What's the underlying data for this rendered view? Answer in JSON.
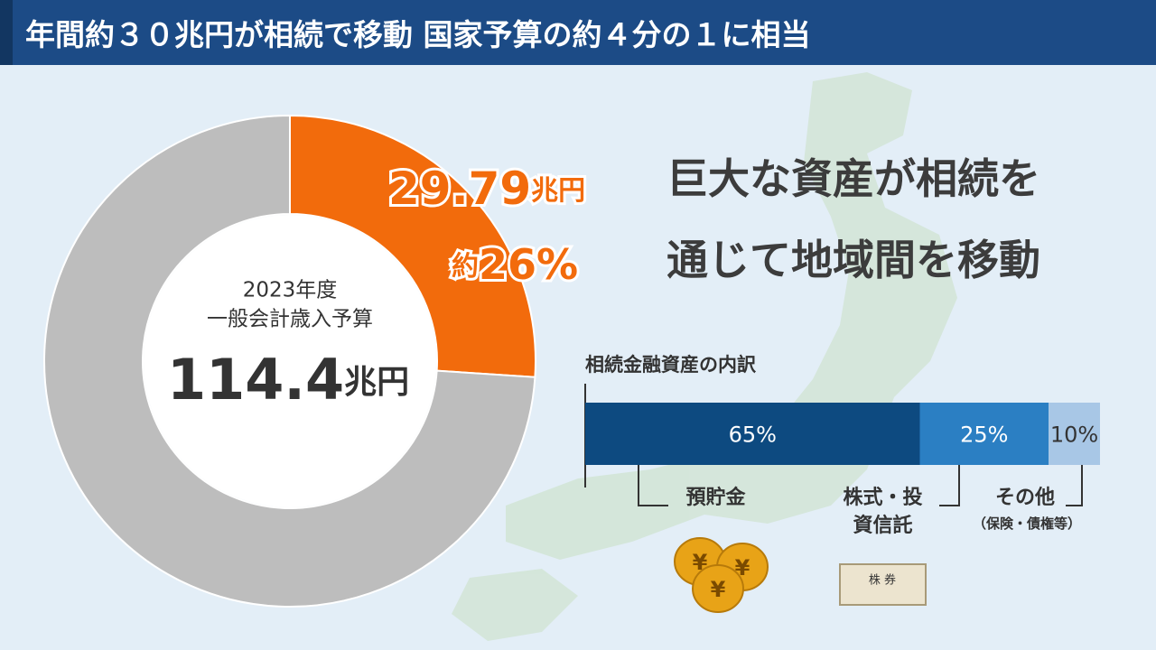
{
  "header": {
    "title": "年間約３０兆円が相続で移動 国家予算の約４分の１に相当"
  },
  "message": {
    "lines": [
      "巨大な資産が相続を",
      "通じて地域間を移動"
    ]
  },
  "icons": {
    "coin_symbol": "¥",
    "certificate_label": "株 券"
  },
  "chart_data": [
    {
      "type": "pie",
      "center_label": [
        "2023年度",
        "一般会計歳入予算"
      ],
      "total": 114.4,
      "unit": "兆円",
      "values": [
        29.79
      ],
      "color": "#f26b0c",
      "rest_color": "#bdbdbd",
      "share_prefix": "約",
      "share": 26,
      "share_label": "26%"
    },
    {
      "type": "bar",
      "title": "相続金融資産の内訳",
      "xlim": [
        0,
        100
      ],
      "series": [
        {
          "name": "預貯金",
          "color": "#0d4a80",
          "values": [
            65
          ],
          "value_labels": [
            "65%"
          ]
        },
        {
          "name": "株式・投資信託",
          "color": "#2b7fc3",
          "values": [
            25
          ],
          "value_labels": [
            "25%"
          ]
        },
        {
          "name": "その他",
          "note": "（保険・債権等）",
          "color": "#a8c7e6",
          "values": [
            10
          ],
          "value_labels": [
            "10%"
          ]
        }
      ]
    }
  ]
}
